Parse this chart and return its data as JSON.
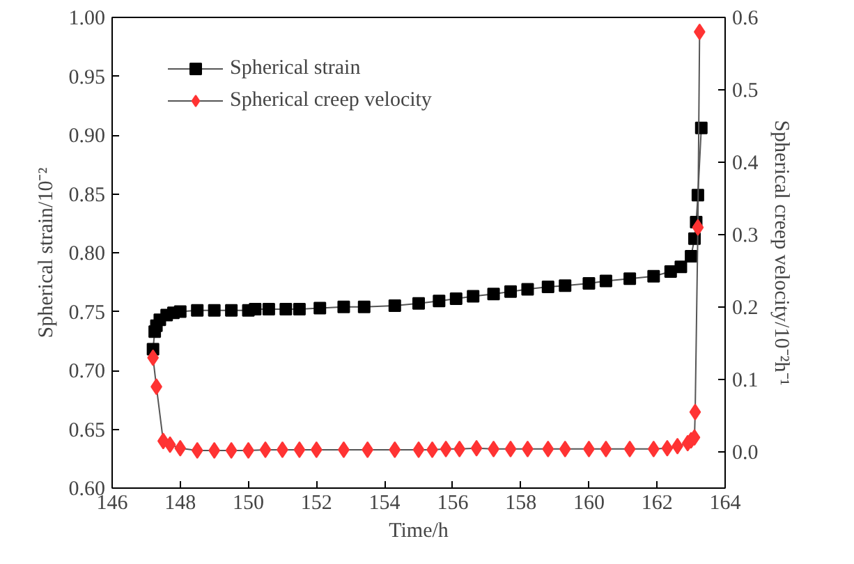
{
  "chart_data": {
    "type": "line",
    "xlabel": "Time/h",
    "ylabel": "Spherical strain/10⁻²",
    "y2label": "Spherical creep velocity/10⁻²h⁻¹",
    "xlim": [
      146,
      164
    ],
    "xticks": [
      146,
      148,
      150,
      152,
      154,
      156,
      158,
      160,
      162,
      164
    ],
    "ylim": [
      0.6,
      1.0
    ],
    "yticks": [
      {
        "value": 0.6,
        "label": "0.60"
      },
      {
        "value": 0.65,
        "label": "0.65"
      },
      {
        "value": 0.7,
        "label": "0.70"
      },
      {
        "value": 0.75,
        "label": "0.75"
      },
      {
        "value": 0.8,
        "label": "0.80"
      },
      {
        "value": 0.85,
        "label": "0.85"
      },
      {
        "value": 0.9,
        "label": "0.90"
      },
      {
        "value": 0.95,
        "label": "0.95"
      },
      {
        "value": 1.0,
        "label": "1.00"
      }
    ],
    "y2lim": [
      -0.05,
      0.6
    ],
    "y2ticks": [
      {
        "value": 0,
        "label": "0.0"
      },
      0.1,
      0.2,
      0.3,
      0.4,
      0.5,
      0.6
    ],
    "grid": false,
    "legend": "top left",
    "series": [
      {
        "name": "Spherical strain",
        "color": "#000000",
        "marker": "square",
        "x": [
          147.2,
          147.25,
          147.3,
          147.4,
          147.6,
          147.8,
          148.0,
          148.5,
          149.0,
          149.5,
          150.0,
          150.2,
          150.6,
          151.1,
          151.5,
          152.1,
          152.8,
          153.4,
          154.3,
          155.0,
          155.6,
          156.1,
          156.6,
          157.2,
          157.7,
          158.2,
          158.8,
          159.3,
          160.0,
          160.5,
          161.2,
          161.9,
          162.4,
          162.7,
          163.0,
          163.1,
          163.15,
          163.2,
          163.3
        ],
        "values": [
          0.718,
          0.733,
          0.738,
          0.743,
          0.747,
          0.749,
          0.75,
          0.751,
          0.751,
          0.751,
          0.751,
          0.752,
          0.752,
          0.752,
          0.752,
          0.753,
          0.754,
          0.754,
          0.755,
          0.757,
          0.759,
          0.761,
          0.763,
          0.765,
          0.767,
          0.769,
          0.771,
          0.772,
          0.774,
          0.776,
          0.778,
          0.78,
          0.784,
          0.788,
          0.797,
          0.812,
          0.826,
          0.849,
          0.906
        ]
      },
      {
        "name": "Spherical creep velocity",
        "color": "#ff3333",
        "marker": "diamond",
        "axis": "y2",
        "x": [
          147.2,
          147.3,
          147.5,
          147.7,
          148.0,
          148.5,
          149.0,
          149.5,
          150.0,
          150.5,
          151.0,
          151.5,
          152.0,
          152.8,
          153.5,
          154.3,
          155.0,
          155.4,
          155.8,
          156.2,
          156.7,
          157.2,
          157.7,
          158.2,
          158.8,
          159.3,
          160.0,
          160.5,
          161.2,
          161.9,
          162.3,
          162.6,
          162.9,
          163.0,
          163.1,
          163.12,
          163.2,
          163.25
        ],
        "values": [
          0.13,
          0.09,
          0.015,
          0.01,
          0.005,
          0.002,
          0.002,
          0.002,
          0.002,
          0.003,
          0.003,
          0.003,
          0.003,
          0.003,
          0.003,
          0.003,
          0.003,
          0.003,
          0.004,
          0.004,
          0.005,
          0.004,
          0.004,
          0.004,
          0.004,
          0.004,
          0.004,
          0.004,
          0.004,
          0.004,
          0.005,
          0.008,
          0.012,
          0.016,
          0.02,
          0.055,
          0.31,
          0.58
        ]
      }
    ]
  }
}
